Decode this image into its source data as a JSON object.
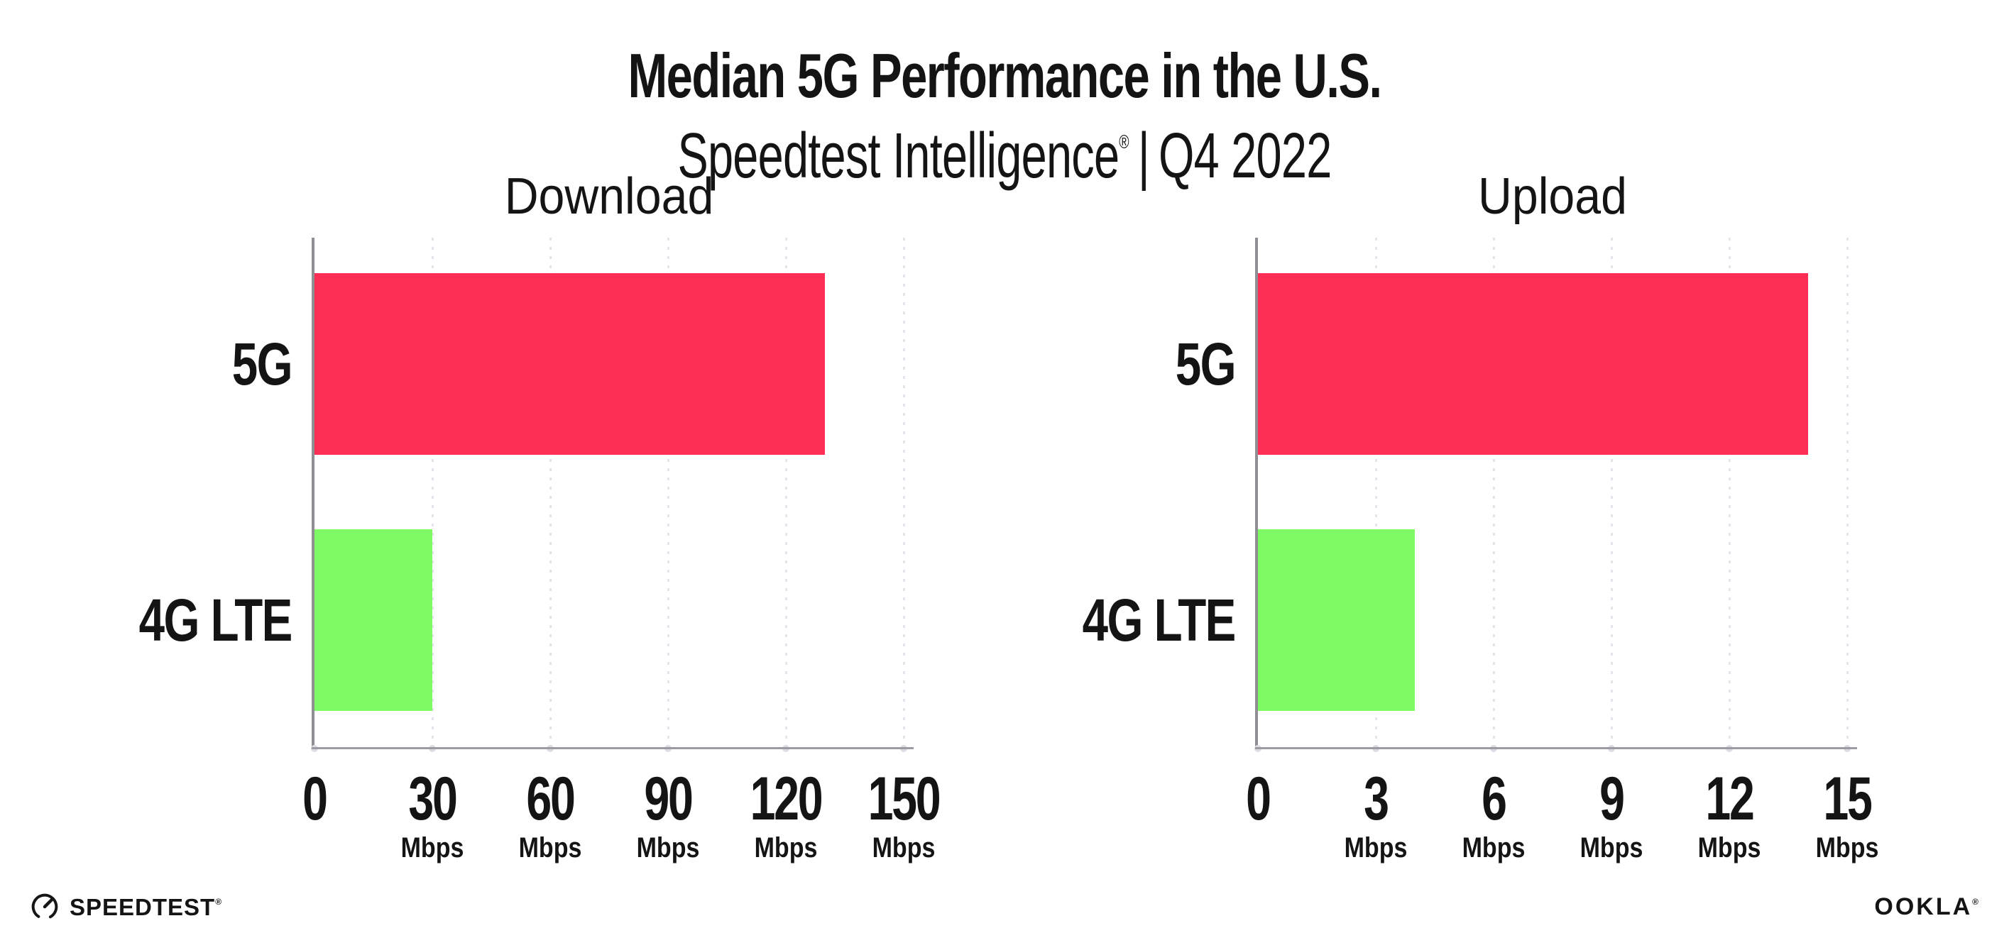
{
  "header": {
    "title": "Median 5G Performance in the U.S.",
    "subtitle": {
      "brand": "Speedtest Intelligence",
      "registered_mark": "®",
      "separator": "|",
      "period": "Q4 2022"
    }
  },
  "chart_data": [
    {
      "type": "bar",
      "orientation": "horizontal",
      "title": "Download",
      "categories": [
        "5G",
        "4G LTE"
      ],
      "values": [
        130,
        30
      ],
      "unit": "Mbps",
      "xlim": [
        0,
        150
      ],
      "xticks": [
        0,
        30,
        60,
        90,
        120,
        150
      ],
      "ticks": [
        {
          "label": "0",
          "unit": ""
        },
        {
          "label": "30",
          "unit": "Mbps"
        },
        {
          "label": "60",
          "unit": "Mbps"
        },
        {
          "label": "90",
          "unit": "Mbps"
        },
        {
          "label": "120",
          "unit": "Mbps"
        },
        {
          "label": "150",
          "unit": "Mbps"
        }
      ],
      "series_colors": [
        "#FF2E55",
        "#7EFA66"
      ],
      "grid": "dotted-vertical",
      "legend": "none"
    },
    {
      "type": "bar",
      "orientation": "horizontal",
      "title": "Upload",
      "categories": [
        "5G",
        "4G LTE"
      ],
      "values": [
        14,
        4
      ],
      "unit": "Mbps",
      "xlim": [
        0,
        15
      ],
      "xticks": [
        0,
        3,
        6,
        9,
        12,
        15
      ],
      "ticks": [
        {
          "label": "0",
          "unit": ""
        },
        {
          "label": "3",
          "unit": "Mbps"
        },
        {
          "label": "6",
          "unit": "Mbps"
        },
        {
          "label": "9",
          "unit": "Mbps"
        },
        {
          "label": "12",
          "unit": "Mbps"
        },
        {
          "label": "15",
          "unit": "Mbps"
        }
      ],
      "series_colors": [
        "#FF2E55",
        "#7EFA66"
      ],
      "grid": "dotted-vertical",
      "legend": "none"
    }
  ],
  "footer": {
    "speedtest_logo": {
      "label": "SPEEDTEST",
      "registered_mark": "®",
      "icon": "speedtest-gauge-icon"
    },
    "ookla_logo": {
      "label": "OOKLA",
      "registered_mark": "®"
    }
  },
  "colors": {
    "bar_5g": "#FF2E55",
    "bar_4g_lte": "#7EFA66",
    "axis_line": "#98989E",
    "gridline": "#E3E3EC",
    "text": "#141414",
    "background": "#FFFFFF"
  }
}
